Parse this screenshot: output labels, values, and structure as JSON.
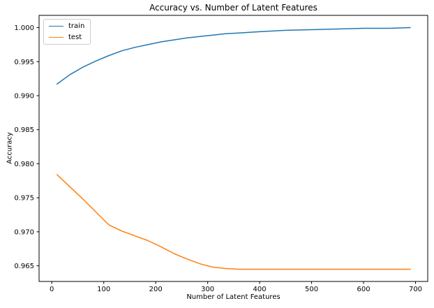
{
  "figure": {
    "background": "#ffffff",
    "text_color": "#000000",
    "spine_color": "#000000"
  },
  "chart_data": {
    "type": "line",
    "title": "Accuracy vs. Number of Latent Features",
    "xlabel": "Number of Latent Features",
    "ylabel": "Accuracy",
    "grid": false,
    "xlim": [
      -24.5,
      723.5
    ],
    "ylim": [
      0.9627,
      1.0018
    ],
    "x_ticks": [
      0,
      100,
      200,
      300,
      400,
      500,
      600,
      700
    ],
    "x_tick_labels": [
      "0",
      "100",
      "200",
      "300",
      "400",
      "500",
      "600",
      "700"
    ],
    "y_ticks": [
      0.965,
      0.97,
      0.975,
      0.98,
      0.985,
      0.99,
      0.995,
      1.0
    ],
    "y_tick_labels": [
      "0.965",
      "0.970",
      "0.975",
      "0.980",
      "0.985",
      "0.990",
      "0.995",
      "1.000"
    ],
    "legend": {
      "position": "upper left",
      "entries": [
        "train",
        "test"
      ]
    },
    "series": [
      {
        "name": "train",
        "color": "#1f77b4",
        "x": [
          10,
          35,
          60,
          85,
          110,
          135,
          160,
          185,
          210,
          235,
          260,
          285,
          310,
          335,
          360,
          400,
          450,
          500,
          550,
          600,
          650,
          690
        ],
        "y": [
          0.9917,
          0.9931,
          0.9942,
          0.9951,
          0.9959,
          0.9966,
          0.9971,
          0.9975,
          0.9979,
          0.9982,
          0.9985,
          0.9987,
          0.9989,
          0.9991,
          0.9992,
          0.9994,
          0.9996,
          0.9997,
          0.9998,
          0.9999,
          0.9999,
          1.0
        ]
      },
      {
        "name": "test",
        "color": "#ff7f0e",
        "x": [
          10,
          35,
          60,
          85,
          110,
          135,
          160,
          185,
          210,
          235,
          260,
          285,
          310,
          335,
          360,
          400,
          450,
          500,
          550,
          600,
          650,
          690
        ],
        "y": [
          0.9784,
          0.9766,
          0.9748,
          0.9729,
          0.971,
          0.9701,
          0.9694,
          0.9687,
          0.9678,
          0.9668,
          0.966,
          0.9653,
          0.9648,
          0.9646,
          0.9645,
          0.9645,
          0.9645,
          0.9645,
          0.9645,
          0.9645,
          0.9645,
          0.9645
        ]
      }
    ]
  }
}
